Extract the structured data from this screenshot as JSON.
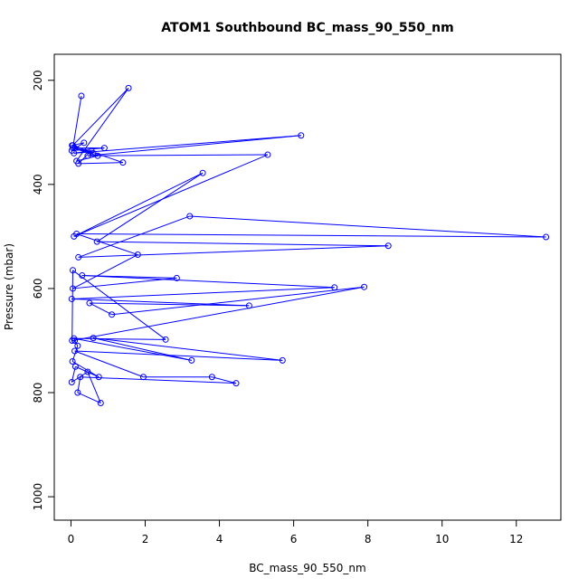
{
  "chart_data": {
    "type": "line",
    "title": "ATOM1 Southbound BC_mass_90_550_nm",
    "xlabel": "BC_mass_90_550_nm",
    "ylabel": "Pressure (mbar)",
    "xlim": [
      -0.45,
      13.2
    ],
    "ylim": [
      1045,
      150
    ],
    "y_inverted": true,
    "x_ticks": [
      0,
      2,
      4,
      6,
      8,
      10,
      12
    ],
    "y_ticks": [
      200,
      400,
      600,
      800,
      1000
    ],
    "grid": false,
    "legend": "none",
    "marker": "open-circle",
    "color": "#0000ff",
    "series": [
      {
        "x": [
          0.28,
          0.05,
          0.72,
          0.15,
          1.55,
          0.05,
          0.35,
          0.02,
          0.9,
          0.1,
          0.6,
          0.03,
          1.4,
          0.2,
          0.55,
          0.08,
          6.2,
          0.45,
          5.3,
          0.08,
          3.55,
          0.7,
          8.55,
          0.2,
          3.2,
          12.8,
          0.15,
          1.8,
          0.05,
          2.85,
          0.3,
          7.1,
          0.02,
          4.8,
          0.5,
          1.1,
          7.9,
          0.03,
          0.05,
          2.55,
          0.08,
          3.25,
          0.6,
          5.7,
          0.1,
          1.95,
          3.8,
          4.45,
          0.25,
          0.18,
          0.8,
          0.45,
          0.02,
          0.12,
          0.75,
          0.04,
          0.18,
          0.1
        ]
      }
    ],
    "y": [
      230,
      330,
      345,
      355,
      215,
      325,
      320,
      335,
      330,
      330,
      340,
      325,
      358,
      360,
      335,
      340,
      306,
      345,
      343,
      500,
      378,
      510,
      518,
      540,
      461,
      501,
      495,
      535,
      600,
      580,
      575,
      598,
      620,
      633,
      628,
      650,
      597,
      700,
      565,
      698,
      696,
      738,
      695,
      738,
      720,
      770,
      770,
      782,
      770,
      800,
      820,
      760,
      780,
      750,
      770,
      740,
      710,
      700
    ]
  }
}
